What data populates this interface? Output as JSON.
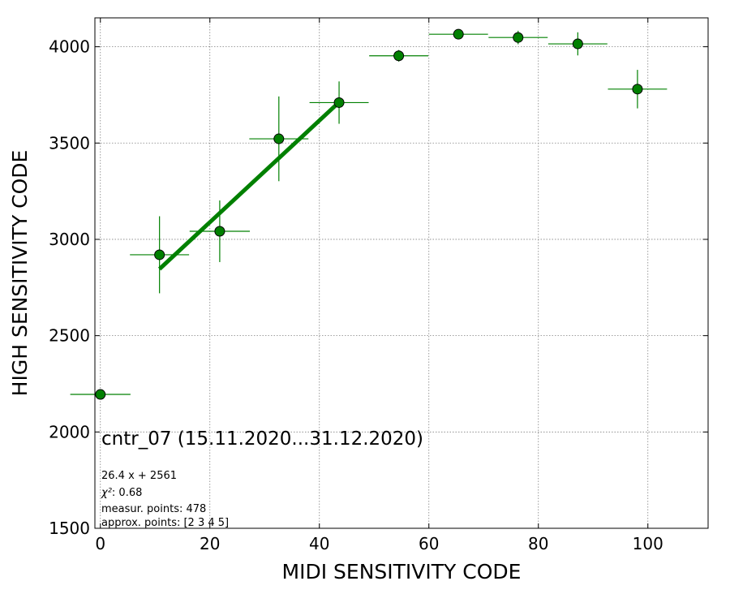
{
  "chart_data": {
    "type": "scatter",
    "xlabel": "MIDI SENSITIVITY CODE",
    "ylabel": "HIGH SENSITIVITY CODE",
    "xlim": [
      -1,
      111
    ],
    "ylim": [
      1500,
      4150
    ],
    "x_ticks": [
      0,
      20,
      40,
      60,
      80,
      100
    ],
    "y_ticks": [
      1500,
      2000,
      2500,
      3000,
      3500,
      4000
    ],
    "grid": true,
    "points": [
      {
        "x": 0,
        "y": 2195,
        "xerr": 5.5,
        "yerr": 0
      },
      {
        "x": 10.8,
        "y": 2920,
        "xerr": 5.4,
        "yerr": 200
      },
      {
        "x": 21.8,
        "y": 3042,
        "xerr": 5.5,
        "yerr": 160
      },
      {
        "x": 32.6,
        "y": 3522,
        "xerr": 5.4,
        "yerr": 220
      },
      {
        "x": 43.6,
        "y": 3710,
        "xerr": 5.4,
        "yerr": 110
      },
      {
        "x": 54.5,
        "y": 3953,
        "xerr": 5.4,
        "yerr": 30
      },
      {
        "x": 65.4,
        "y": 4065,
        "xerr": 5.4,
        "yerr": 0
      },
      {
        "x": 76.3,
        "y": 4048,
        "xerr": 5.4,
        "yerr": 35
      },
      {
        "x": 87.2,
        "y": 4015,
        "xerr": 5.4,
        "yerr": 60
      },
      {
        "x": 98.1,
        "y": 3780,
        "xerr": 5.4,
        "yerr": 100
      }
    ],
    "fit": {
      "slope": 26.4,
      "intercept": 2561,
      "x_start": 10.8,
      "x_end": 43.6
    },
    "colors": {
      "marker": "#008000",
      "fit": "#008000",
      "grid": "#808080"
    },
    "annotation": {
      "title": "cntr_07 (15.11.2020...31.12.2020)",
      "equation": "26.4 x + 2561",
      "chi2_label": "χ²",
      "chi2_value": ": 0.68",
      "measur": "measur. points: 478",
      "approx": "approx. points: [2 3 4 5]"
    }
  }
}
